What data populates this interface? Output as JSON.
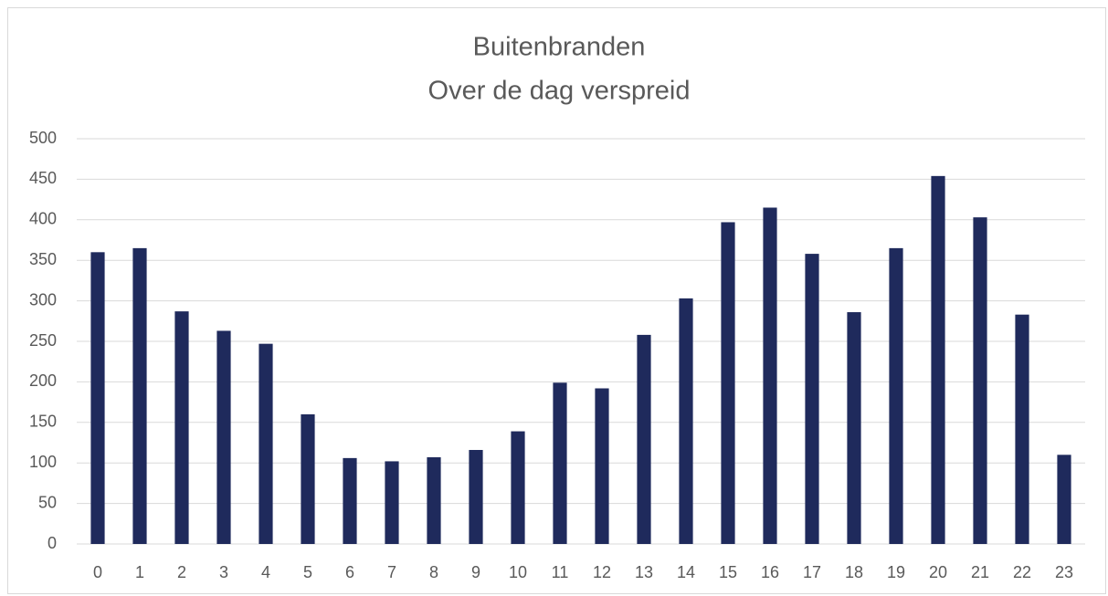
{
  "chart_data": {
    "type": "bar",
    "title": "Buitenbranden",
    "subtitle": "Over de dag verspreid",
    "categories": [
      "0",
      "1",
      "2",
      "3",
      "4",
      "5",
      "6",
      "7",
      "8",
      "9",
      "10",
      "11",
      "12",
      "13",
      "14",
      "15",
      "16",
      "17",
      "18",
      "19",
      "20",
      "21",
      "22",
      "23"
    ],
    "values": [
      360,
      365,
      287,
      263,
      247,
      160,
      106,
      102,
      107,
      116,
      139,
      199,
      192,
      258,
      303,
      397,
      415,
      358,
      286,
      365,
      454,
      403,
      283,
      110
    ],
    "color": "#1f2a5c",
    "ylim": [
      0,
      500
    ],
    "yticks": [
      0,
      50,
      100,
      150,
      200,
      250,
      300,
      350,
      400,
      450,
      500
    ],
    "grid": true
  }
}
